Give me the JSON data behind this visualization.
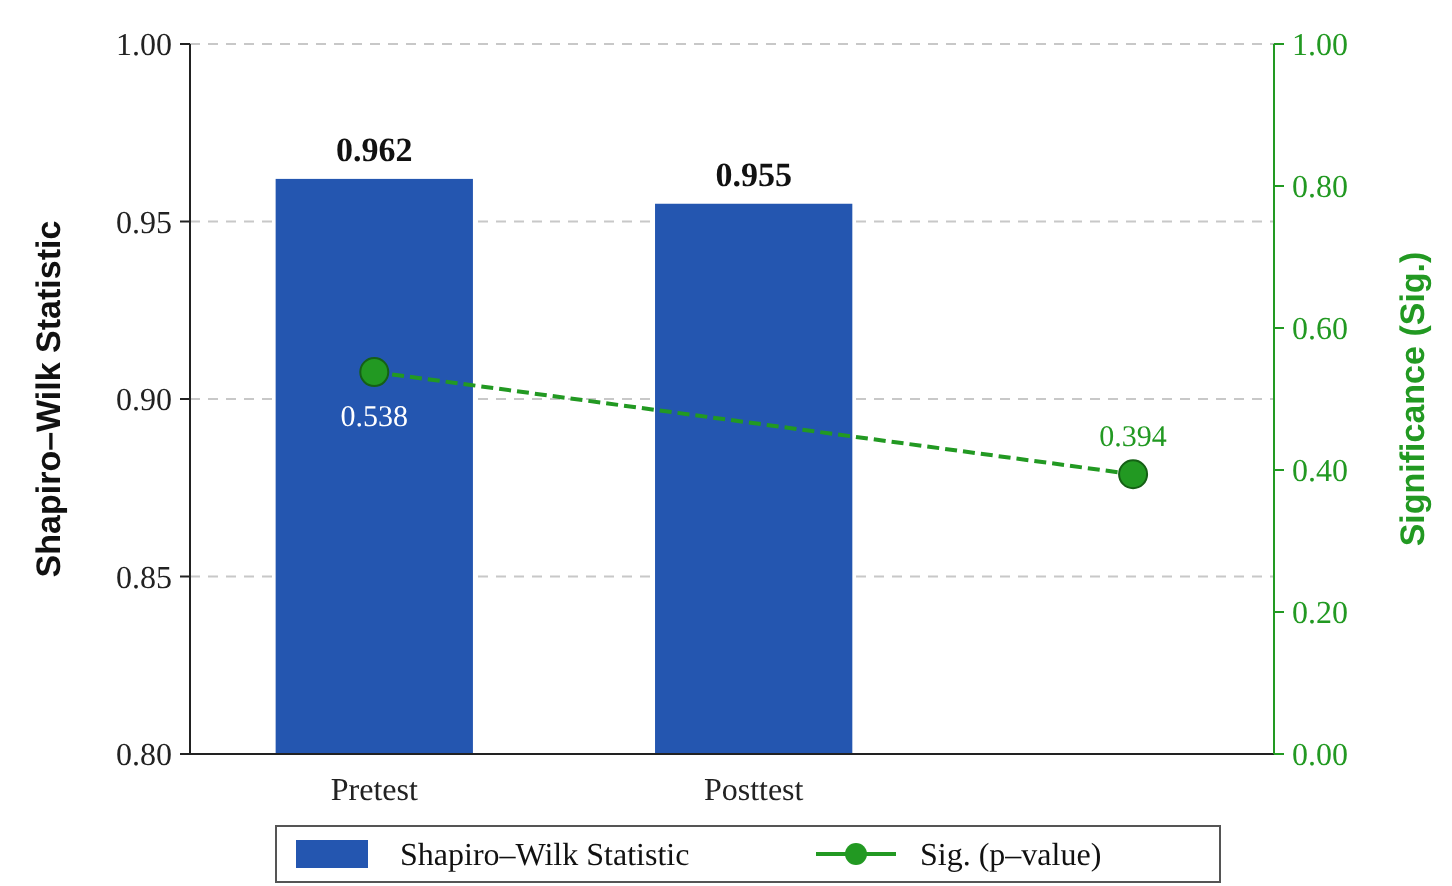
{
  "chart_data": {
    "type": "bar",
    "categories": [
      "Pretest",
      "Posttest",
      null
    ],
    "ylabel": "Shapiro–Wilk Statistic",
    "y2label": "Significance (Sig.)",
    "ylim": [
      0.8,
      1.0
    ],
    "yticks": [
      {
        "value": 0.8,
        "label": "0.80"
      },
      {
        "value": 0.85,
        "label": "0.85"
      },
      {
        "value": 0.9,
        "label": "0.90"
      },
      {
        "value": 0.95,
        "label": "0.95"
      },
      {
        "value": 1.0,
        "label": "1.00"
      }
    ],
    "y2lim": [
      0,
      1
    ],
    "y2ticks": [
      {
        "value": 0,
        "label": "0.00"
      },
      {
        "value": 0.2,
        "label": "0.20"
      },
      {
        "value": 0.4,
        "label": "0.40"
      },
      {
        "value": 0.6,
        "label": "0.60"
      },
      {
        "value": 0.8,
        "label": "0.80"
      },
      {
        "value": 1,
        "label": "1.00"
      }
    ],
    "grid": "y",
    "legend": "bottom",
    "data_labels": true,
    "series": [
      {
        "name": "Shapiro–Wilk Statistic",
        "color": "#2456b0",
        "values": [
          0.962,
          0.955,
          null
        ]
      },
      {
        "name": "Sig. (p–value)",
        "type": "line",
        "axis": "y2",
        "color": "#229922",
        "values": [
          0.538,
          null,
          0.394
        ],
        "value_labels": [
          "0.538",
          null,
          "0.394"
        ],
        "marker": "circle",
        "line_style": "dashed"
      }
    ]
  }
}
